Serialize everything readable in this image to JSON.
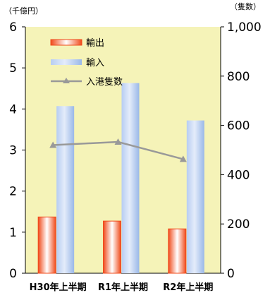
{
  "chart_data": {
    "type": "bar",
    "categories": [
      "H30年上半期",
      "R1年上半期",
      "R2年上半期"
    ],
    "series": [
      {
        "name": "輸出",
        "type": "bar",
        "axis": "left",
        "values": [
          1.37,
          1.27,
          1.08
        ],
        "color": "#f04a1a"
      },
      {
        "name": "輸入",
        "type": "bar",
        "axis": "left",
        "values": [
          4.07,
          4.63,
          3.72
        ],
        "color": "#a8c4ee"
      },
      {
        "name": "入港隻数",
        "type": "line",
        "axis": "right",
        "values": [
          520,
          533,
          463
        ],
        "color": "#999999"
      }
    ],
    "y_left": {
      "unit_label": "（千億円）",
      "min": 0,
      "max": 6,
      "ticks": [
        "0",
        "1",
        "2",
        "3",
        "4",
        "5",
        "6"
      ]
    },
    "y_right": {
      "unit_label": "（隻数）",
      "min": 0,
      "max": 1000,
      "ticks": [
        "0",
        "200",
        "400",
        "600",
        "800",
        "1,000"
      ]
    },
    "plot_background": "#f5f3b8",
    "grid": false,
    "legend_position": "top-left"
  }
}
